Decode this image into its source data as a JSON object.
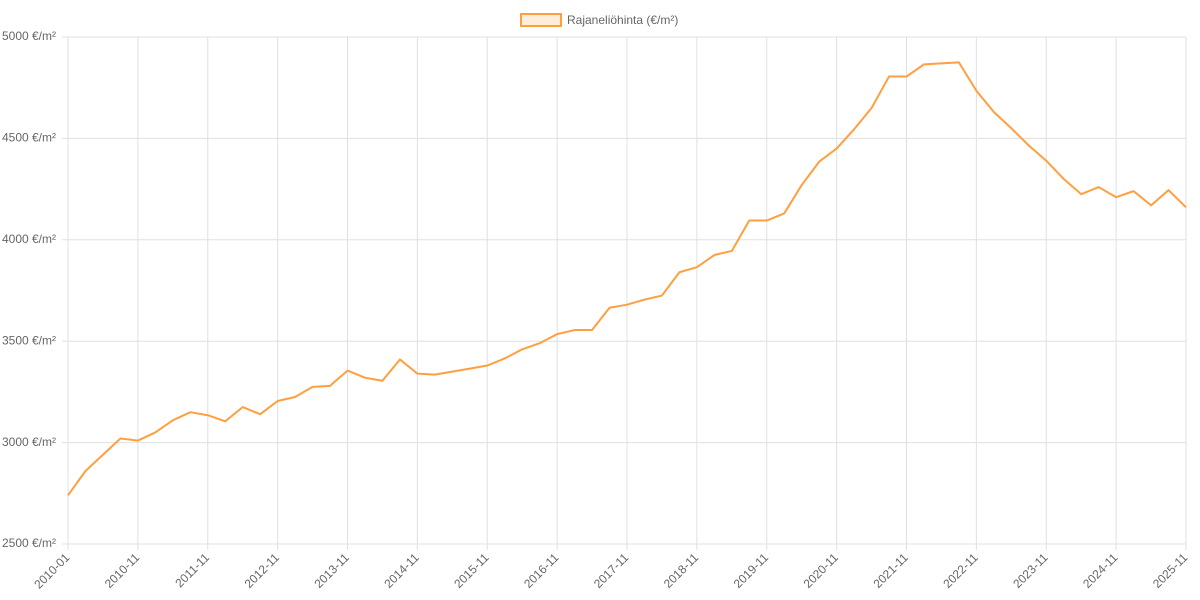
{
  "chart_data": {
    "type": "line",
    "categories": [
      "2010-01",
      null,
      null,
      null,
      "2010-11",
      null,
      null,
      null,
      "2011-11",
      null,
      null,
      null,
      "2012-11",
      null,
      null,
      null,
      "2013-11",
      null,
      null,
      null,
      "2014-11",
      null,
      null,
      null,
      "2015-11",
      null,
      null,
      null,
      "2016-11",
      null,
      null,
      null,
      "2017-11",
      null,
      null,
      null,
      "2018-11",
      null,
      null,
      null,
      "2019-11",
      null,
      null,
      null,
      "2020-11",
      null,
      null,
      null,
      "2021-11",
      null,
      null,
      null,
      "2022-11",
      null,
      null,
      null,
      "2023-11",
      null,
      null,
      null,
      "2024-11",
      null,
      null,
      null,
      "2025-11"
    ],
    "series": [
      {
        "name": "Rajaneliöhinta (€/m²)",
        "color": "#ff9f40",
        "values": [
          2740,
          2860,
          2940,
          3020,
          3010,
          3050,
          3110,
          3150,
          3135,
          3105,
          3175,
          3140,
          3205,
          3225,
          3275,
          3280,
          3355,
          3320,
          3305,
          3410,
          3340,
          3335,
          3350,
          3365,
          3380,
          3415,
          3460,
          3490,
          3535,
          3555,
          3555,
          3665,
          3680,
          3705,
          3725,
          3840,
          3865,
          3925,
          3945,
          4095,
          4095,
          4130,
          4270,
          4385,
          4450,
          4545,
          4650,
          4805,
          4805,
          4865,
          4870,
          4875,
          4735,
          4630,
          4550,
          4465,
          4390,
          4300,
          4225,
          4260,
          4210,
          4240,
          4170,
          4245,
          4160
        ]
      }
    ],
    "ylim": [
      2500,
      5000
    ],
    "yticks": [
      {
        "value": 2500,
        "label": "2500 €/m²"
      },
      {
        "value": 3000,
        "label": "3000 €/m²"
      },
      {
        "value": 3500,
        "label": "3500 €/m²"
      },
      {
        "value": 4000,
        "label": "4000 €/m²"
      },
      {
        "value": 4500,
        "label": "4500 €/m²"
      },
      {
        "value": 5000,
        "label": "5000 €/m²"
      }
    ],
    "grid": true,
    "legend": "top"
  }
}
